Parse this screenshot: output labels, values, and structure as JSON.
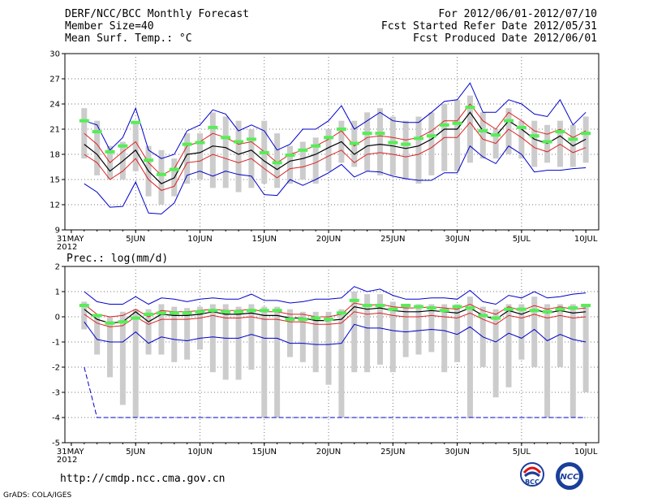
{
  "header": {
    "title": "DERF/NCC/BCC Monthly Forecast",
    "member_size": "Member Size=40",
    "variable_top": "Mean Surf. Temp.: °C",
    "period": "For 2012/06/01-2012/07/10",
    "started": "Fcst Started Refer Date 2012/05/31",
    "produced": "Fcst Produced Date 2012/06/01"
  },
  "footer": {
    "url": "http://cmdp.ncc.cma.gov.cn",
    "grads": "GrADS: COLA/IGES",
    "logo_bcc": "BCC",
    "logo_ncc": "NCC"
  },
  "colors": {
    "ensemble_mean": "#000000",
    "spread_band": "#dd2222",
    "envelope": "#0000cc",
    "member_bar": "#cccccc",
    "climatology_marker": "#55ee55"
  },
  "chart_data": [
    {
      "type": "line",
      "title": "Mean Surf. Temp.: °C",
      "xlabel": "",
      "ylabel": "",
      "ylim": [
        9,
        30
      ],
      "yticks": [
        9,
        12,
        15,
        18,
        21,
        24,
        27,
        30
      ],
      "x_tick_labels": [
        "31MAY\n2012",
        "5JUN",
        "10JUN",
        "15JUN",
        "20JUN",
        "25JUN",
        "30JUN",
        "5JUL",
        "10JUL"
      ],
      "x_tick_days": [
        0,
        5,
        10,
        15,
        20,
        25,
        30,
        35,
        40
      ],
      "days": [
        1,
        2,
        3,
        4,
        5,
        6,
        7,
        8,
        9,
        10,
        11,
        12,
        13,
        14,
        15,
        16,
        17,
        18,
        19,
        20,
        21,
        22,
        23,
        24,
        25,
        26,
        27,
        28,
        29,
        30,
        31,
        32,
        33,
        34,
        35,
        36,
        37,
        38,
        39,
        40
      ],
      "series": [
        {
          "name": "ensemble_mean",
          "values": [
            19.2,
            18.0,
            16.0,
            17.2,
            18.5,
            16.0,
            14.5,
            15.2,
            18.0,
            18.2,
            19.0,
            18.8,
            18.0,
            18.5,
            17.2,
            16.2,
            17.2,
            17.5,
            18.0,
            18.8,
            19.5,
            18.0,
            19.0,
            19.2,
            19.0,
            18.7,
            19.0,
            19.8,
            21.0,
            21.0,
            23.0,
            20.8,
            20.2,
            22.0,
            21.0,
            19.8,
            19.3,
            20.2,
            19.0,
            19.8
          ]
        },
        {
          "name": "mean_plus_spread",
          "values": [
            20.5,
            19.2,
            17.0,
            18.3,
            19.5,
            17.0,
            15.5,
            16.3,
            19.0,
            19.5,
            20.5,
            20.0,
            19.2,
            19.5,
            18.3,
            17.0,
            18.0,
            18.5,
            19.0,
            19.8,
            20.8,
            19.0,
            20.0,
            20.2,
            20.0,
            19.7,
            20.0,
            20.8,
            22.0,
            22.0,
            24.0,
            22.0,
            21.0,
            23.0,
            22.0,
            20.8,
            20.4,
            21.0,
            20.0,
            20.8
          ]
        },
        {
          "name": "mean_minus_spread",
          "values": [
            18.0,
            17.0,
            15.0,
            16.0,
            17.5,
            15.0,
            13.7,
            14.2,
            17.0,
            17.2,
            18.0,
            17.5,
            17.0,
            17.5,
            16.3,
            15.2,
            16.3,
            16.5,
            17.0,
            17.8,
            18.5,
            17.0,
            18.0,
            18.2,
            18.0,
            17.7,
            18.0,
            18.8,
            20.0,
            20.0,
            21.8,
            19.8,
            19.3,
            21.0,
            20.0,
            18.8,
            18.3,
            19.2,
            18.2,
            18.8
          ]
        },
        {
          "name": "ensemble_max",
          "values": [
            22.0,
            21.5,
            18.5,
            20.0,
            23.5,
            18.5,
            17.5,
            18.0,
            20.8,
            21.5,
            23.3,
            22.8,
            20.8,
            21.5,
            20.8,
            18.5,
            19.2,
            21.0,
            21.0,
            22.0,
            23.8,
            21.0,
            22.0,
            23.0,
            22.0,
            21.8,
            21.8,
            23.0,
            24.3,
            24.5,
            26.5,
            23.0,
            23.0,
            24.5,
            24.0,
            22.8,
            22.5,
            24.5,
            21.5,
            23.0
          ]
        },
        {
          "name": "ensemble_min",
          "values": [
            14.5,
            13.5,
            11.7,
            11.8,
            14.7,
            11.0,
            10.9,
            12.2,
            15.5,
            16.0,
            15.4,
            16.0,
            15.6,
            15.4,
            13.2,
            13.1,
            15.0,
            14.3,
            15.0,
            15.8,
            16.8,
            15.3,
            16.0,
            15.9,
            15.4,
            15.1,
            14.9,
            14.9,
            15.8,
            15.8,
            19.0,
            17.7,
            16.9,
            19.0,
            18.0,
            15.9,
            16.1,
            16.1,
            16.3,
            16.4
          ]
        }
      ],
      "bars": {
        "name": "member_range",
        "low": [
          17.5,
          15.5,
          15.0,
          15.0,
          16.0,
          13.0,
          12.0,
          13.0,
          14.5,
          15.0,
          14.0,
          14.0,
          13.5,
          14.0,
          14.5,
          14.0,
          14.5,
          15.0,
          14.5,
          16.0,
          17.0,
          16.5,
          16.0,
          15.5,
          15.5,
          15.0,
          14.5,
          15.5,
          16.0,
          16.0,
          17.0,
          17.5,
          17.5,
          18.0,
          17.5,
          16.5,
          17.0,
          16.5,
          16.5,
          17.0
        ],
        "high": [
          23.5,
          22.0,
          19.0,
          19.5,
          22.0,
          19.0,
          18.5,
          17.5,
          20.5,
          20.5,
          23.0,
          22.5,
          22.0,
          21.0,
          22.0,
          20.5,
          19.0,
          19.5,
          20.0,
          21.0,
          22.0,
          22.0,
          23.0,
          23.5,
          22.5,
          22.0,
          22.5,
          23.0,
          24.0,
          24.5,
          25.0,
          23.0,
          21.0,
          23.5,
          22.0,
          22.0,
          21.5,
          22.0,
          21.5,
          22.5
        ]
      },
      "climatology": [
        22.0,
        20.7,
        18.3,
        19.0,
        21.8,
        17.3,
        15.6,
        16.2,
        19.2,
        19.4,
        21.2,
        20.0,
        19.5,
        19.8,
        18.2,
        17.0,
        17.9,
        18.5,
        19.0,
        20.0,
        21.0,
        19.3,
        20.5,
        20.5,
        19.4,
        19.2,
        19.9,
        20.2,
        21.5,
        21.7,
        23.6,
        20.8,
        20.3,
        22.0,
        21.2,
        20.2,
        19.5,
        20.7,
        19.8,
        20.5
      ]
    },
    {
      "type": "line",
      "title": "Prec.: log(mm/d)",
      "xlabel": "",
      "ylabel": "",
      "ylim": [
        -5,
        2
      ],
      "yticks": [
        -5,
        -4,
        -3,
        -2,
        -1,
        0,
        1,
        2
      ],
      "x_tick_labels": [
        "31MAY\n2012",
        "5JUN",
        "10JUN",
        "15JUN",
        "20JUN",
        "25JUN",
        "30JUN",
        "5JUL",
        "10JUL"
      ],
      "x_tick_days": [
        0,
        5,
        10,
        15,
        20,
        25,
        30,
        35,
        40
      ],
      "days": [
        1,
        2,
        3,
        4,
        5,
        6,
        7,
        8,
        9,
        10,
        11,
        12,
        13,
        14,
        15,
        16,
        17,
        18,
        19,
        20,
        21,
        22,
        23,
        24,
        25,
        26,
        27,
        28,
        29,
        30,
        31,
        32,
        33,
        34,
        35,
        36,
        37,
        38,
        39,
        40
      ],
      "series": [
        {
          "name": "ensemble_mean",
          "values": [
            0.3,
            -0.1,
            -0.25,
            -0.2,
            0.2,
            -0.2,
            0.1,
            0.05,
            0.05,
            0.1,
            0.2,
            0.1,
            0.1,
            0.15,
            0.05,
            0.05,
            -0.05,
            -0.05,
            -0.15,
            -0.15,
            -0.1,
            0.4,
            0.3,
            0.35,
            0.25,
            0.2,
            0.2,
            0.25,
            0.2,
            0.15,
            0.35,
            0.05,
            -0.1,
            0.25,
            0.1,
            0.3,
            0.15,
            0.25,
            0.15,
            0.2
          ]
        },
        {
          "name": "mean_plus_spread",
          "values": [
            0.5,
            0.1,
            0.0,
            0.05,
            0.3,
            0.0,
            0.25,
            0.2,
            0.2,
            0.25,
            0.3,
            0.25,
            0.25,
            0.3,
            0.2,
            0.2,
            0.1,
            0.1,
            0.0,
            0.0,
            0.1,
            0.55,
            0.45,
            0.5,
            0.4,
            0.35,
            0.35,
            0.4,
            0.35,
            0.3,
            0.5,
            0.25,
            0.1,
            0.4,
            0.25,
            0.45,
            0.3,
            0.4,
            0.3,
            0.35
          ]
        },
        {
          "name": "mean_minus_spread",
          "values": [
            0.1,
            -0.25,
            -0.4,
            -0.35,
            0.0,
            -0.3,
            -0.1,
            -0.1,
            -0.1,
            -0.05,
            0.05,
            -0.05,
            -0.05,
            0.0,
            -0.1,
            -0.1,
            -0.2,
            -0.2,
            -0.3,
            -0.3,
            -0.25,
            0.2,
            0.1,
            0.15,
            0.05,
            0.0,
            0.0,
            0.05,
            0.0,
            -0.05,
            0.15,
            -0.1,
            -0.3,
            0.05,
            -0.05,
            0.1,
            -0.05,
            0.05,
            -0.05,
            0.0
          ]
        },
        {
          "name": "ensemble_max",
          "values": [
            1.0,
            0.6,
            0.5,
            0.5,
            0.8,
            0.5,
            0.75,
            0.7,
            0.6,
            0.7,
            0.75,
            0.7,
            0.7,
            0.9,
            0.65,
            0.65,
            0.55,
            0.6,
            0.7,
            0.7,
            0.75,
            1.2,
            1.0,
            1.1,
            0.85,
            0.7,
            0.7,
            0.75,
            0.75,
            0.7,
            1.05,
            0.6,
            0.5,
            0.85,
            0.75,
            1.0,
            0.75,
            0.8,
            0.9,
            0.95
          ]
        },
        {
          "name": "ensemble_min",
          "values": [
            -0.2,
            -0.9,
            -1.0,
            -1.0,
            -0.6,
            -1.05,
            -0.8,
            -0.9,
            -0.95,
            -0.85,
            -0.8,
            -0.85,
            -0.85,
            -0.7,
            -0.85,
            -0.85,
            -1.05,
            -1.05,
            -1.1,
            -1.1,
            -1.05,
            -0.3,
            -0.45,
            -0.45,
            -0.55,
            -0.6,
            -0.55,
            -0.5,
            -0.55,
            -0.7,
            -0.4,
            -0.8,
            -1.0,
            -0.65,
            -0.85,
            -0.5,
            -0.95,
            -0.7,
            -0.9,
            -1.0
          ]
        },
        {
          "name": "lowest_member",
          "values": [
            -2.0,
            -4.0,
            -4.0,
            -4.0,
            -4.0,
            -4.0,
            -4.0,
            -4.0,
            -4.0,
            -4.0,
            -4.0,
            -4.0,
            -4.0,
            -4.0,
            -4.0,
            -4.0,
            -4.0,
            -4.0,
            -4.0,
            -4.0,
            -4.0,
            -4.0,
            -4.0,
            -4.0,
            -4.0,
            -4.0,
            -4.0,
            -4.0,
            -4.0,
            -4.0,
            -4.0,
            -4.0,
            -4.0,
            -4.0,
            -4.0,
            -4.0,
            -4.0,
            -4.0,
            -4.0,
            -4.0
          ]
        }
      ],
      "bars": {
        "name": "member_range",
        "low": [
          -0.5,
          -1.5,
          -2.4,
          -3.5,
          -4.0,
          -1.5,
          -1.5,
          -1.8,
          -1.7,
          -1.3,
          -2.2,
          -2.5,
          -2.5,
          -2.1,
          -4.0,
          -4.0,
          -1.6,
          -1.8,
          -2.2,
          -2.7,
          -4.0,
          -2.2,
          -2.2,
          -1.9,
          -2.2,
          -1.6,
          -1.5,
          -1.4,
          -2.2,
          -1.8,
          -4.0,
          -2.0,
          -3.2,
          -2.8,
          -1.7,
          -2.0,
          -4.0,
          -2.0,
          -4.0,
          -3.0
        ],
        "high": [
          0.6,
          0.1,
          0.0,
          0.2,
          0.3,
          0.3,
          0.5,
          0.4,
          0.35,
          0.4,
          0.5,
          0.5,
          0.4,
          0.5,
          0.4,
          0.4,
          0.3,
          0.2,
          0.2,
          0.2,
          0.3,
          1.0,
          0.9,
          0.9,
          0.6,
          0.5,
          0.5,
          0.5,
          0.5,
          0.5,
          0.8,
          0.4,
          0.3,
          0.5,
          0.5,
          0.8,
          0.5,
          0.5,
          0.5,
          0.5
        ]
      },
      "climatology": [
        0.45,
        0.05,
        -0.25,
        -0.2,
        -0.05,
        0.1,
        0.15,
        0.15,
        0.15,
        0.2,
        0.25,
        0.2,
        0.2,
        0.25,
        0.25,
        0.25,
        -0.1,
        -0.1,
        -0.05,
        -0.1,
        0.15,
        0.65,
        0.45,
        0.45,
        0.3,
        0.45,
        0.4,
        0.35,
        0.25,
        0.4,
        0.35,
        0.05,
        -0.05,
        0.3,
        0.3,
        0.25,
        0.2,
        0.3,
        0.35,
        0.45
      ]
    }
  ]
}
